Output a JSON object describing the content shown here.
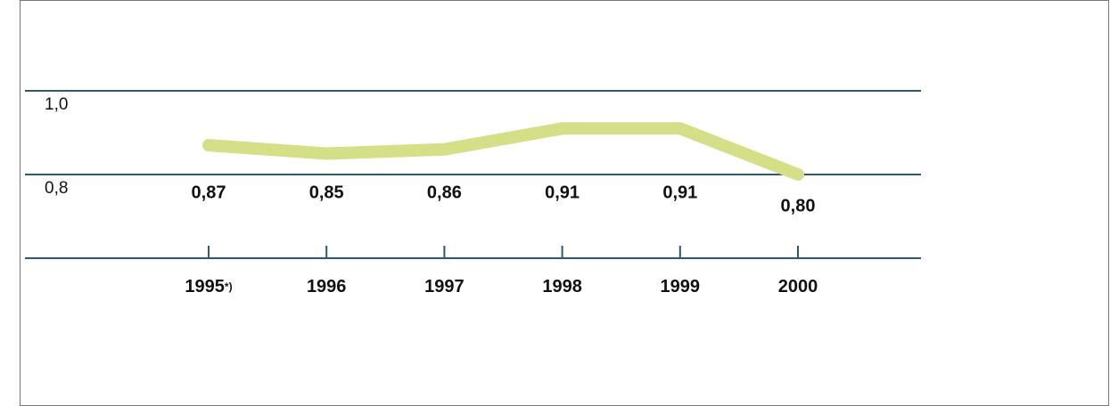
{
  "chart_data": {
    "type": "line",
    "categories": [
      "1995",
      "1996",
      "1997",
      "1998",
      "1999",
      "2000"
    ],
    "category_note": "*)",
    "values": [
      0.87,
      0.85,
      0.86,
      0.91,
      0.91,
      0.8
    ],
    "value_labels": [
      "0,87",
      "0,85",
      "0,86",
      "0,91",
      "0,91",
      "0,80"
    ],
    "color": "#d5df88",
    "ylim": [
      0.6,
      1.0
    ],
    "yticks": [
      {
        "value": 0.8,
        "label": "0,8"
      },
      {
        "value": 1.0,
        "label": "1,0"
      }
    ],
    "grid": true
  }
}
